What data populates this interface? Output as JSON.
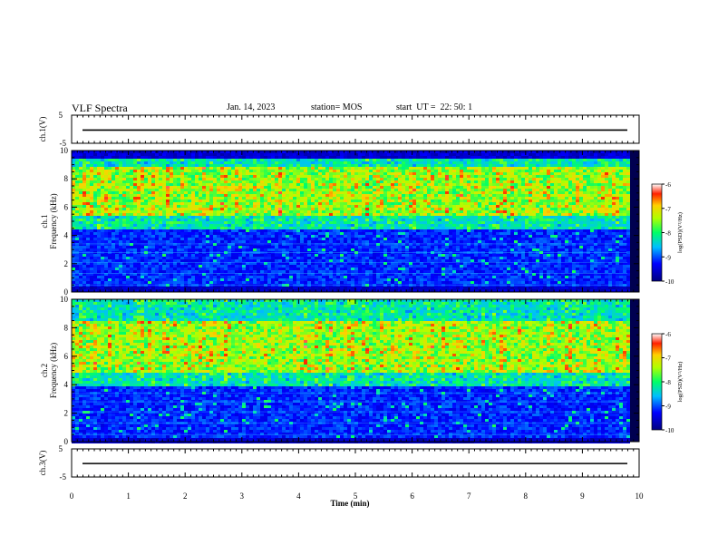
{
  "header": {
    "title": "VLF Spectra",
    "date": "Jan. 14, 2023",
    "station": "station= MOS",
    "start": "start  UT =  22: 50: 1"
  },
  "chart_data": [
    {
      "type": "line",
      "panel": "ch1-waveform",
      "ylabel": "ch.1(V)",
      "ylim": [
        -5,
        5
      ],
      "yticks": [
        "5",
        "-5"
      ],
      "xlim": [
        0,
        10
      ],
      "trace_level": -0.3
    },
    {
      "type": "heatmap",
      "panel": "ch1-spectrogram",
      "ylabel": "ch.1\nFrequency (kHz)",
      "ylim": [
        0,
        10
      ],
      "yticks": [
        "0",
        "2",
        "4",
        "6",
        "8",
        "10"
      ],
      "xlim": [
        0,
        10
      ],
      "colorbar": {
        "label": "log(PSD)(V²/Hz)",
        "range": [
          -10,
          -6
        ],
        "ticks": [
          "-6",
          "-7",
          "-8",
          "-9",
          "-10"
        ]
      },
      "emission_band_khz": [
        4.5,
        9.5
      ],
      "peak_band_khz": [
        5.5,
        9.0
      ]
    },
    {
      "type": "heatmap",
      "panel": "ch2-spectrogram",
      "ylabel": "ch.2\nFrequency (kHz)",
      "ylim": [
        0,
        10
      ],
      "yticks": [
        "0",
        "2",
        "4",
        "6",
        "8",
        "10"
      ],
      "xlim": [
        0,
        10
      ],
      "colorbar": {
        "label": "log(PSD)(V²/Hz)",
        "range": [
          -10,
          -6
        ],
        "ticks": [
          "-6",
          "-7",
          "-8",
          "-9",
          "-10"
        ]
      },
      "emission_band_khz": [
        4.0,
        10.0
      ],
      "peak_band_khz": [
        5.0,
        8.5
      ]
    },
    {
      "type": "line",
      "panel": "ch3-waveform",
      "ylabel": "ch.3(V)",
      "ylim": [
        -5,
        5
      ],
      "yticks": [
        "5",
        "-5"
      ],
      "xlim": [
        0,
        10
      ],
      "trace_level": -0.2
    }
  ],
  "xaxis": {
    "label": "Time (min)",
    "ticks": [
      "0",
      "1",
      "2",
      "3",
      "4",
      "5",
      "6",
      "7",
      "8",
      "9",
      "10"
    ]
  }
}
